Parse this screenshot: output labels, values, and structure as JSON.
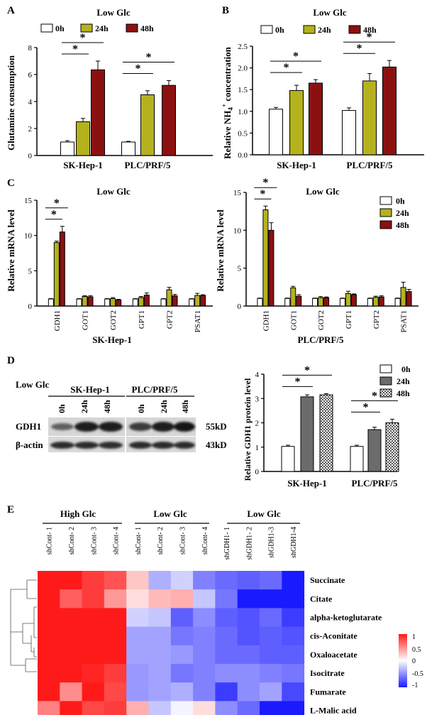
{
  "colors": {
    "c0h": "#ffffff",
    "c24h": "#b5b21e",
    "c48h": "#8b1111",
    "grey24": "#6b6b6b",
    "grey48": "#cfcfcf"
  },
  "panels": {
    "A": {
      "letter": "A",
      "title": "Low Glc",
      "ylabel": "Glutamine consumption"
    },
    "B": {
      "letter": "B",
      "title": "Low Glc",
      "ylabel": "Relative NH4+ concentration"
    },
    "C": {
      "letter": "C",
      "title_left": "Low Glc",
      "title_right": "Low Glc",
      "ylabel": "Relative mRNA level",
      "xlabel_left": "SK-Hep-1",
      "xlabel_right": "PLC/PRF/5"
    },
    "D": {
      "letter": "D",
      "title": "Low Glc",
      "cell1": "SK-Hep-1",
      "cell2": "PLC/PRF/5",
      "lanes": [
        "0h",
        "24h",
        "48h",
        "0h",
        "24h",
        "48h"
      ],
      "proteins": [
        "GDH1",
        "β-actin"
      ],
      "sizes": [
        "55kD",
        "43kD"
      ],
      "ylabel": "Relative GDH1 protein level"
    },
    "E": {
      "letter": "E",
      "groups": [
        "High Glc",
        "Low Glc",
        "Low Glc"
      ],
      "columns": [
        "shCont- 1",
        "shCont- 2",
        "shCont- 3",
        "shCont- 4",
        "shCont- 1",
        "shCont- 2",
        "shCont- 3",
        "shCont- 4",
        "shGDH1- 1",
        "shGDH1- 2",
        "shGDH1-3",
        "shGDH1-4"
      ],
      "rows": [
        "Succinate",
        "Citate",
        "alpha-ketoglutarate",
        "cis-Aconitate",
        "Oxaloacetate",
        "Isocitrate",
        "Fumarate",
        "L-Malic acid"
      ],
      "scale_ticks": [
        "1",
        "0.5",
        "0",
        "-0.5",
        "-1"
      ]
    }
  },
  "star": "*",
  "chart_data": [
    {
      "id": "A",
      "type": "bar",
      "title": "Low Glc",
      "ylabel": "Glutamine consumption",
      "ylim": [
        0,
        8
      ],
      "yticks": [
        0,
        2,
        4,
        6,
        8
      ],
      "categories": [
        "SK-Hep-1",
        "PLC/PRF/5"
      ],
      "series": [
        {
          "name": "0h",
          "values": [
            1.0,
            1.0
          ],
          "err": [
            0.1,
            0.05
          ]
        },
        {
          "name": "24h",
          "values": [
            2.5,
            4.5
          ],
          "err": [
            0.25,
            0.3
          ]
        },
        {
          "name": "48h",
          "values": [
            6.35,
            5.2
          ],
          "err": [
            0.65,
            0.35
          ]
        }
      ],
      "sig": [
        {
          "group": 0,
          "to": 1,
          "level": 1
        },
        {
          "group": 0,
          "to": 2,
          "level": 2
        },
        {
          "group": 1,
          "to": 1,
          "level": 1
        },
        {
          "group": 1,
          "to": 2,
          "level": 2
        }
      ]
    },
    {
      "id": "B",
      "type": "bar",
      "title": "Low Glc",
      "ylabel": "Relative NH4+ concentration",
      "ylim": [
        0,
        2.5
      ],
      "yticks": [
        0.0,
        0.5,
        1.0,
        1.5,
        2.0,
        2.5
      ],
      "categories": [
        "SK-Hep-1",
        "PLC/PRF/5"
      ],
      "series": [
        {
          "name": "0h",
          "values": [
            1.05,
            1.02
          ],
          "err": [
            0.04,
            0.06
          ]
        },
        {
          "name": "24h",
          "values": [
            1.48,
            1.7
          ],
          "err": [
            0.12,
            0.17
          ]
        },
        {
          "name": "48h",
          "values": [
            1.65,
            2.02
          ],
          "err": [
            0.08,
            0.15
          ]
        }
      ],
      "sig": [
        {
          "group": 0,
          "to": 1,
          "level": 1
        },
        {
          "group": 0,
          "to": 2,
          "level": 2
        },
        {
          "group": 1,
          "to": 1,
          "level": 1
        },
        {
          "group": 1,
          "to": 2,
          "level": 2
        }
      ]
    },
    {
      "id": "C-left",
      "type": "bar",
      "title": "Low Glc",
      "xlabel": "SK-Hep-1",
      "ylabel": "Relative mRNA level",
      "ylim": [
        0,
        15
      ],
      "yticks": [
        0,
        5,
        10,
        15
      ],
      "categories": [
        "GDH1",
        "GOT1",
        "GOT2",
        "GPT1",
        "GPT2",
        "PSAT1"
      ],
      "series": [
        {
          "name": "0h",
          "values": [
            1.0,
            1.0,
            1.0,
            1.0,
            1.0,
            1.0
          ],
          "err": [
            0.05,
            0.05,
            0.05,
            0.05,
            0.05,
            0.05
          ]
        },
        {
          "name": "24h",
          "values": [
            9.0,
            1.35,
            1.05,
            1.2,
            2.3,
            1.5
          ],
          "err": [
            0.2,
            0.1,
            0.15,
            0.15,
            0.35,
            0.3
          ]
        },
        {
          "name": "48h",
          "values": [
            10.5,
            1.3,
            0.85,
            1.55,
            1.45,
            1.5
          ],
          "err": [
            0.8,
            0.15,
            0.1,
            0.3,
            0.2,
            0.1
          ]
        }
      ],
      "sig": [
        {
          "group": 0,
          "to": 1,
          "level": 1
        },
        {
          "group": 0,
          "to": 2,
          "level": 2
        }
      ]
    },
    {
      "id": "C-right",
      "type": "bar",
      "title": "Low Glc",
      "xlabel": "PLC/PRF/5",
      "ylabel": "Relative mRNA level",
      "ylim": [
        0,
        15
      ],
      "yticks": [
        0,
        5,
        10,
        15
      ],
      "categories": [
        "GDH1",
        "GOT1",
        "GOT2",
        "GPT1",
        "GPT2",
        "PSAT1"
      ],
      "series": [
        {
          "name": "0h",
          "values": [
            1.0,
            1.0,
            1.0,
            1.0,
            1.0,
            1.0
          ],
          "err": [
            0.05,
            0.05,
            0.05,
            0.05,
            0.05,
            0.05
          ]
        },
        {
          "name": "24h",
          "values": [
            12.7,
            2.4,
            1.1,
            1.65,
            1.15,
            2.45
          ],
          "err": [
            0.5,
            0.2,
            0.15,
            0.3,
            0.15,
            0.7
          ]
        },
        {
          "name": "48h",
          "values": [
            10.0,
            1.3,
            1.1,
            1.5,
            1.2,
            1.9
          ],
          "err": [
            1.0,
            0.2,
            0.1,
            0.1,
            0.15,
            0.3
          ]
        }
      ],
      "sig": [
        {
          "group": 0,
          "to": 1,
          "level": 1
        },
        {
          "group": 0,
          "to": 2,
          "level": 2
        }
      ]
    },
    {
      "id": "D",
      "type": "bar",
      "ylabel": "Relative GDH1 protein level",
      "ylim": [
        0,
        4
      ],
      "yticks": [
        0,
        1,
        2,
        3,
        4
      ],
      "categories": [
        "SK-Hep-1",
        "PLC/PRF/5"
      ],
      "series": [
        {
          "name": "0h",
          "values": [
            1.03,
            1.03
          ],
          "err": [
            0.05,
            0.05
          ]
        },
        {
          "name": "24h",
          "values": [
            3.07,
            1.72
          ],
          "err": [
            0.08,
            0.1
          ]
        },
        {
          "name": "48h",
          "values": [
            3.15,
            2.0
          ],
          "err": [
            0.05,
            0.15
          ]
        }
      ],
      "sig": [
        {
          "group": 0,
          "to": 1,
          "level": 1
        },
        {
          "group": 0,
          "to": 2,
          "level": 2
        },
        {
          "group": 1,
          "to": 1,
          "level": 1
        },
        {
          "group": 1,
          "to": 2,
          "level": 2
        }
      ]
    },
    {
      "id": "E",
      "type": "heatmap",
      "xlabels": [
        "shCont- 1",
        "shCont- 2",
        "shCont- 3",
        "shCont- 4",
        "shCont- 1",
        "shCont- 2",
        "shCont- 3",
        "shCont- 4",
        "shGDH1- 1",
        "shGDH1- 2",
        "shGDH1-3",
        "shGDH1-4"
      ],
      "ylabels": [
        "Succinate",
        "Citate",
        "alpha-ketoglutarate",
        "cis-Aconitate",
        "Oxaloacetate",
        "Isocitrate",
        "Fumarate",
        "L-Malic acid"
      ],
      "zlim": [
        -1,
        1
      ],
      "values": [
        [
          1,
          1,
          0.85,
          0.75,
          0.25,
          -0.35,
          -0.2,
          -0.55,
          -0.65,
          -0.7,
          -0.65,
          -1
        ],
        [
          1,
          0.7,
          0.85,
          0.45,
          0.15,
          0.3,
          0.35,
          -0.25,
          -0.6,
          -1,
          -1,
          -1
        ],
        [
          1,
          1,
          1,
          1,
          -0.2,
          -0.25,
          -0.7,
          -0.5,
          -0.7,
          -0.75,
          -0.65,
          -0.85
        ],
        [
          1,
          1,
          1,
          1,
          -0.4,
          -0.4,
          -0.6,
          -0.55,
          -0.65,
          -0.75,
          -0.7,
          -0.75
        ],
        [
          1,
          1,
          1,
          1,
          -0.4,
          -0.4,
          -0.45,
          -0.55,
          -0.65,
          -0.65,
          -0.7,
          -0.7
        ],
        [
          1,
          1,
          0.95,
          0.85,
          -0.45,
          -0.4,
          -0.6,
          -0.55,
          -0.5,
          -0.5,
          -0.55,
          -0.6
        ],
        [
          1,
          0.5,
          1,
          0.8,
          -0.45,
          -0.4,
          -0.35,
          -0.55,
          -0.85,
          -0.5,
          -0.4,
          -0.8
        ],
        [
          0.55,
          1,
          0.8,
          0.85,
          0.35,
          -0.25,
          -0.05,
          0.15,
          -0.5,
          -0.65,
          -1,
          -1
        ]
      ]
    }
  ]
}
